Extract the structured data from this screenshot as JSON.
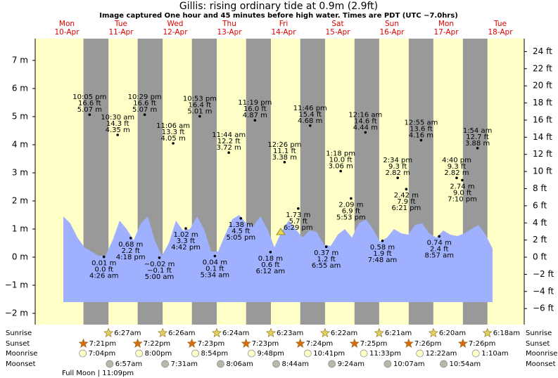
{
  "chart_data": {
    "type": "tide",
    "title": "Gillis: rising  ordinary tide at 0.9m (2.9ft)",
    "subtitle": "Image captured One hour and 45 minutes before high water. Times are PDT (UTC −7.0hrs)",
    "ylim": [
      -2.4,
      7.775
    ],
    "yticks": [
      {
        "value": -2,
        "label": "−2 m"
      },
      {
        "value": -1,
        "label": "−1 m"
      },
      {
        "value": 0,
        "label": "0 m"
      },
      {
        "value": 1,
        "label": "1 m"
      },
      {
        "value": 2,
        "label": "2 m"
      },
      {
        "value": 3,
        "label": "3 m"
      },
      {
        "value": 4,
        "label": "4 m"
      },
      {
        "value": 5,
        "label": "5 m"
      },
      {
        "value": 6,
        "label": "6 m"
      },
      {
        "value": 7,
        "label": "7 m"
      }
    ],
    "y2lim": [
      -7.87,
      25.51
    ],
    "y2ticks": [
      {
        "value": -6,
        "label": "−6 ft"
      },
      {
        "value": -4,
        "label": "−4 ft"
      },
      {
        "value": -2,
        "label": "−2 ft"
      },
      {
        "value": 0,
        "label": "0 ft"
      },
      {
        "value": 2,
        "label": "2 ft"
      },
      {
        "value": 4,
        "label": "4 ft"
      },
      {
        "value": 6,
        "label": "6 ft"
      },
      {
        "value": 8,
        "label": "8 ft"
      },
      {
        "value": 10,
        "label": "10 ft"
      },
      {
        "value": 12,
        "label": "12 ft"
      },
      {
        "value": 14,
        "label": "14 ft"
      },
      {
        "value": 16,
        "label": "16 ft"
      },
      {
        "value": 18,
        "label": "18 ft"
      },
      {
        "value": 20,
        "label": "20 ft"
      },
      {
        "value": 22,
        "label": "22 ft"
      },
      {
        "value": 24,
        "label": "24 ft"
      }
    ],
    "curve_color": "#9fb0ff",
    "day_color": "#ffffc8",
    "night_color": "#999999",
    "tide_curve": [
      1.45,
      1.2,
      0.7,
      0.35,
      0.2,
      0.05,
      0.05,
      0.6,
      1.3,
      1.0,
      0.6,
      1.2,
      1.45,
      0.6,
      0.05,
      0.5,
      1.3,
      0.95,
      1.0,
      1.45,
      1.0,
      0.2,
      0.2,
      0.8,
      1.35,
      1.5,
      1.2,
      1.1,
      1.45,
      1.0,
      0.35,
      0.9,
      1.3,
      1.0,
      0.7,
      0.95,
      0.9,
      0.45,
      0.4,
      0.8,
      1.0,
      0.7,
      1.2,
      1.35,
      1.0,
      0.55,
      0.7,
      1.0,
      0.85,
      0.8,
      1.15,
      1.2,
      0.85,
      0.7,
      0.95,
      0.8,
      0.75,
      0.85,
      1.0,
      1.15,
      0.8,
      0.3
    ],
    "rows": [
      "Sunrise",
      "Sunset",
      "Moonrise",
      "Moonset"
    ],
    "moon_phase": "Full Moon | 11:09pm",
    "days": [
      {
        "weekday": "Mon",
        "date": "10-Apr",
        "sunset": "7:21pm",
        "moonrise": "7:04pm",
        "tides": [
          {
            "time": "10:05 pm",
            "ft": {
              "value": 16.6,
              "label": "16.6 ft"
            },
            "m": {
              "value": 5.07,
              "label": "5.07 m"
            }
          }
        ]
      },
      {
        "weekday": "Tue",
        "date": "11-Apr",
        "sunrise": "6:27am",
        "sunset": "7:22pm",
        "moonrise": "8:00pm",
        "moonset": "6:57am",
        "tides": [
          {
            "time": "4:26 am",
            "ft": {
              "value": 0,
              "label": "0.0 ft"
            },
            "m": {
              "value": 0.01,
              "label": "0.01 m"
            }
          },
          {
            "time": "10:30 am",
            "ft": {
              "value": 14.3,
              "label": "14.3 ft"
            },
            "m": {
              "value": 4.35,
              "label": "4.35 m"
            }
          },
          {
            "time": "4:18 pm",
            "ft": {
              "value": 2.2,
              "label": "2.2 ft"
            },
            "m": {
              "value": 0.68,
              "label": "0.68 m"
            }
          },
          {
            "time": "10:29 pm",
            "ft": {
              "value": 16.6,
              "label": "16.6 ft"
            },
            "m": {
              "value": 5.07,
              "label": "5.07 m"
            }
          }
        ]
      },
      {
        "weekday": "Wed",
        "date": "12-Apr",
        "sunrise": "6:26am",
        "sunset": "7:23pm",
        "moonrise": "8:54pm",
        "moonset": "7:31am",
        "tides": [
          {
            "time": "5:00 am",
            "ft": {
              "value": -0.1,
              "label": "−0.1 ft"
            },
            "m": {
              "value": -0.02,
              "label": "−0.02 m"
            }
          },
          {
            "time": "11:06 am",
            "ft": {
              "value": 13.3,
              "label": "13.3 ft"
            },
            "m": {
              "value": 4.05,
              "label": "4.05 m"
            }
          },
          {
            "time": "4:42 pm",
            "ft": {
              "value": 3.3,
              "label": "3.3 ft"
            },
            "m": {
              "value": 1.02,
              "label": "1.02 m"
            }
          },
          {
            "time": "10:53 pm",
            "ft": {
              "value": 16.4,
              "label": "16.4 ft"
            },
            "m": {
              "value": 5.01,
              "label": "5.01 m"
            }
          }
        ]
      },
      {
        "weekday": "Thu",
        "date": "13-Apr",
        "sunrise": "6:24am",
        "sunset": "7:23pm",
        "moonrise": "9:48pm",
        "moonset": "8:06am",
        "tides": [
          {
            "time": "5:34 am",
            "ft": {
              "value": 0.1,
              "label": "0.1 ft"
            },
            "m": {
              "value": 0.04,
              "label": "0.04 m"
            }
          },
          {
            "time": "11:44 am",
            "ft": {
              "value": 12.2,
              "label": "12.2 ft"
            },
            "m": {
              "value": 3.72,
              "label": "3.72 m"
            }
          },
          {
            "time": "5:05 pm",
            "ft": {
              "value": 4.5,
              "label": "4.5 ft"
            },
            "m": {
              "value": 1.38,
              "label": "1.38 m"
            }
          },
          {
            "time": "11:19 pm",
            "ft": {
              "value": 16.0,
              "label": "16.0 ft"
            },
            "m": {
              "value": 4.87,
              "label": "4.87 m"
            }
          }
        ]
      },
      {
        "weekday": "Fri",
        "date": "14-Apr",
        "sunrise": "6:23am",
        "sunset": "7:24pm",
        "moonrise": "10:41pm",
        "moonset": "8:44am",
        "tides": [
          {
            "time": "6:12 am",
            "ft": {
              "value": 0.6,
              "label": "0.6 ft"
            },
            "m": {
              "value": 0.18,
              "label": "0.18 m"
            }
          },
          {
            "time": "12:26 pm",
            "ft": {
              "value": 11.1,
              "label": "11.1 ft"
            },
            "m": {
              "value": 3.38,
              "label": "3.38 m"
            }
          },
          {
            "time": "6:29 pm",
            "ft": {
              "value": 5.7,
              "label": "5.7 ft"
            },
            "m": {
              "value": 1.73,
              "label": "1.73 m"
            }
          },
          {
            "time": "11:46 pm",
            "ft": {
              "value": 15.4,
              "label": "15.4 ft"
            },
            "m": {
              "value": 4.68,
              "label": "4.68 m"
            }
          }
        ]
      },
      {
        "weekday": "Sat",
        "date": "15-Apr",
        "sunrise": "6:22am",
        "sunset": "7:25pm",
        "moonrise": "11:33pm",
        "moonset": "9:24am",
        "tides": [
          {
            "time": "6:55 am",
            "ft": {
              "value": 1.2,
              "label": "1.2 ft"
            },
            "m": {
              "value": 0.37,
              "label": "0.37 m"
            }
          },
          {
            "time": "1:18 pm",
            "ft": {
              "value": 10.0,
              "label": "10.0 ft"
            },
            "m": {
              "value": 3.06,
              "label": "3.06 m"
            }
          },
          {
            "time": "5:53 pm",
            "ft": {
              "value": 6.9,
              "label": "6.9 ft"
            },
            "m": {
              "value": 2.09,
              "label": "2.09 m"
            }
          }
        ]
      },
      {
        "weekday": "Sun",
        "date": "16-Apr",
        "sunrise": "6:21am",
        "sunset": "7:26pm",
        "moonset": "10:07am",
        "tides": [
          {
            "time": "12:16 am",
            "ft": {
              "value": 14.6,
              "label": "14.6 ft"
            },
            "m": {
              "value": 4.44,
              "label": "4.44 m"
            }
          },
          {
            "time": "7:48 am",
            "ft": {
              "value": 1.9,
              "label": "1.9 ft"
            },
            "m": {
              "value": 0.58,
              "label": "0.58 m"
            }
          },
          {
            "time": "2:34 pm",
            "ft": {
              "value": 9.3,
              "label": "9.3 ft"
            },
            "m": {
              "value": 2.82,
              "label": "2.82 m"
            }
          },
          {
            "time": "6:21 pm",
            "ft": {
              "value": 7.9,
              "label": "7.9 ft"
            },
            "m": {
              "value": 2.42,
              "label": "2.42 m"
            }
          }
        ]
      },
      {
        "weekday": "Mon",
        "date": "17-Apr",
        "sunrise": "6:20am",
        "sunset": "7:26pm",
        "moonrise": "12:22am",
        "moonset": "10:54am",
        "tides": [
          {
            "time": "12:55 am",
            "ft": {
              "value": 13.6,
              "label": "13.6 ft"
            },
            "m": {
              "value": 4.16,
              "label": "4.16 m"
            }
          },
          {
            "time": "8:57 am",
            "ft": {
              "value": 2.4,
              "label": "2.4 ft"
            },
            "m": {
              "value": 0.74,
              "label": "0.74 m"
            }
          },
          {
            "time": "4:40 pm",
            "ft": {
              "value": 9.3,
              "label": "9.3 ft"
            },
            "m": {
              "value": 2.82,
              "label": "2.82 m"
            }
          },
          {
            "time": "7:10 pm",
            "ft": {
              "value": 9.0,
              "label": "9.0 ft"
            },
            "m": {
              "value": 2.74,
              "label": "2.74 m"
            }
          }
        ]
      },
      {
        "weekday": "Tue",
        "date": "18-Apr",
        "sunrise": "6:18am",
        "moonrise": "1:10am",
        "tides": [
          {
            "time": "1:54 am",
            "ft": {
              "value": 12.7,
              "label": "12.7 ft"
            },
            "m": {
              "value": 3.88,
              "label": "3.88 m"
            }
          }
        ]
      }
    ]
  }
}
